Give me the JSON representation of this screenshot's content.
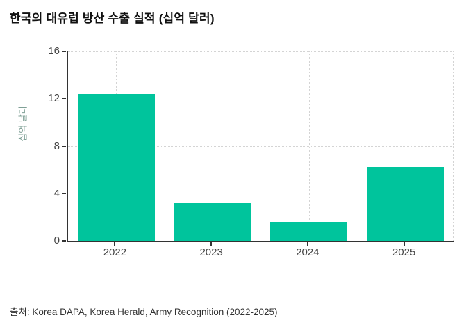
{
  "title": "한국의 대유럽 방산 수출 실적 (십억 달러)",
  "source": "출처: Korea DAPA, Korea Herald, Army Recognition (2022-2025)",
  "chart_data": {
    "type": "bar",
    "categories": [
      "2022",
      "2023",
      "2024",
      "2025"
    ],
    "values": [
      12.4,
      3.2,
      1.6,
      6.2
    ],
    "title": "한국의 대유럽 방산 수출 실적 (십억 달러)",
    "xlabel": "",
    "ylabel": "십억 달러",
    "ylim": [
      0,
      16
    ],
    "yticks": [
      0,
      4,
      8,
      12,
      16
    ],
    "grid": true,
    "legend": "none",
    "bar_color": "#00C49C"
  },
  "colors": {
    "bar": "#00C49C",
    "axis": "#333333",
    "grid": "#d4d4d4",
    "tick_text": "#444444",
    "ylabel_text": "#7fa096",
    "title_text": "#111111",
    "source_text": "#333333"
  }
}
